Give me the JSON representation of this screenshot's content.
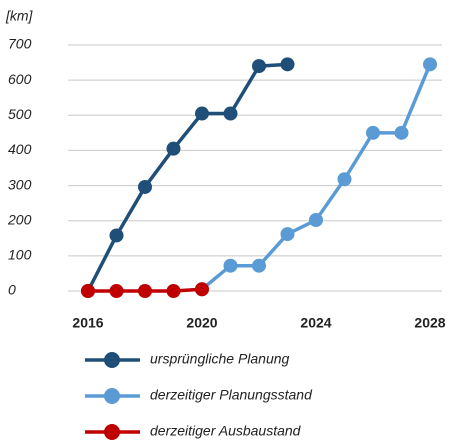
{
  "chart_data": {
    "type": "line",
    "y_unit": "[km]",
    "x": [
      2016,
      2017,
      2018,
      2019,
      2020,
      2021,
      2022,
      2023,
      2024,
      2025,
      2026,
      2027,
      2028
    ],
    "series": [
      {
        "name": "ursprüngliche Planung",
        "color": "#1f4e79",
        "values": [
          0,
          158,
          296,
          405,
          505,
          505,
          640,
          645,
          null,
          null,
          null,
          null,
          null
        ]
      },
      {
        "name": "derzeitiger Planungsstand",
        "color": "#5b9bd5",
        "values": [
          null,
          null,
          null,
          null,
          5,
          72,
          72,
          162,
          202,
          318,
          450,
          450,
          645
        ]
      },
      {
        "name": "derzeitiger Ausbaustand",
        "color": "#c00000",
        "values": [
          0,
          0,
          0,
          0,
          5,
          null,
          null,
          null,
          null,
          null,
          null,
          null,
          null
        ]
      }
    ],
    "xlim": [
      2016,
      2028
    ],
    "xticks": [
      2016,
      2020,
      2024,
      2028
    ],
    "ylim": [
      0,
      700
    ],
    "yticks": [
      0,
      100,
      200,
      300,
      400,
      500,
      600,
      700
    ],
    "grid": true,
    "legend": "bottom"
  }
}
